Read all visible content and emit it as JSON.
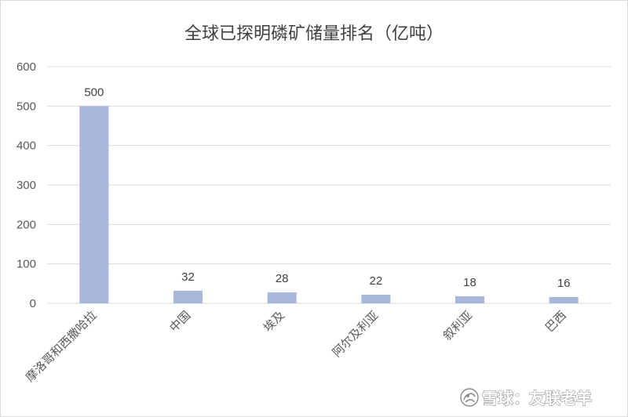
{
  "chart_data": {
    "type": "bar",
    "title": "全球已探明磷矿储量排名（亿吨）",
    "categories": [
      "摩洛哥和西撒哈拉",
      "中国",
      "埃及",
      "阿尔及利亚",
      "叙利亚",
      "巴西"
    ],
    "values": [
      500,
      32,
      28,
      22,
      18,
      16
    ],
    "ylim": [
      0,
      600
    ],
    "yticks": [
      0,
      100,
      200,
      300,
      400,
      500,
      600
    ],
    "xlabel": "",
    "ylabel": "",
    "grid": true,
    "legend": "none",
    "data_labels": true,
    "bar_color": "#a9b7dd",
    "grid_color": "#d9d9d9"
  },
  "watermark": {
    "text": "雪球：友联老羊",
    "logo_icon": "snowball-logo-icon"
  }
}
